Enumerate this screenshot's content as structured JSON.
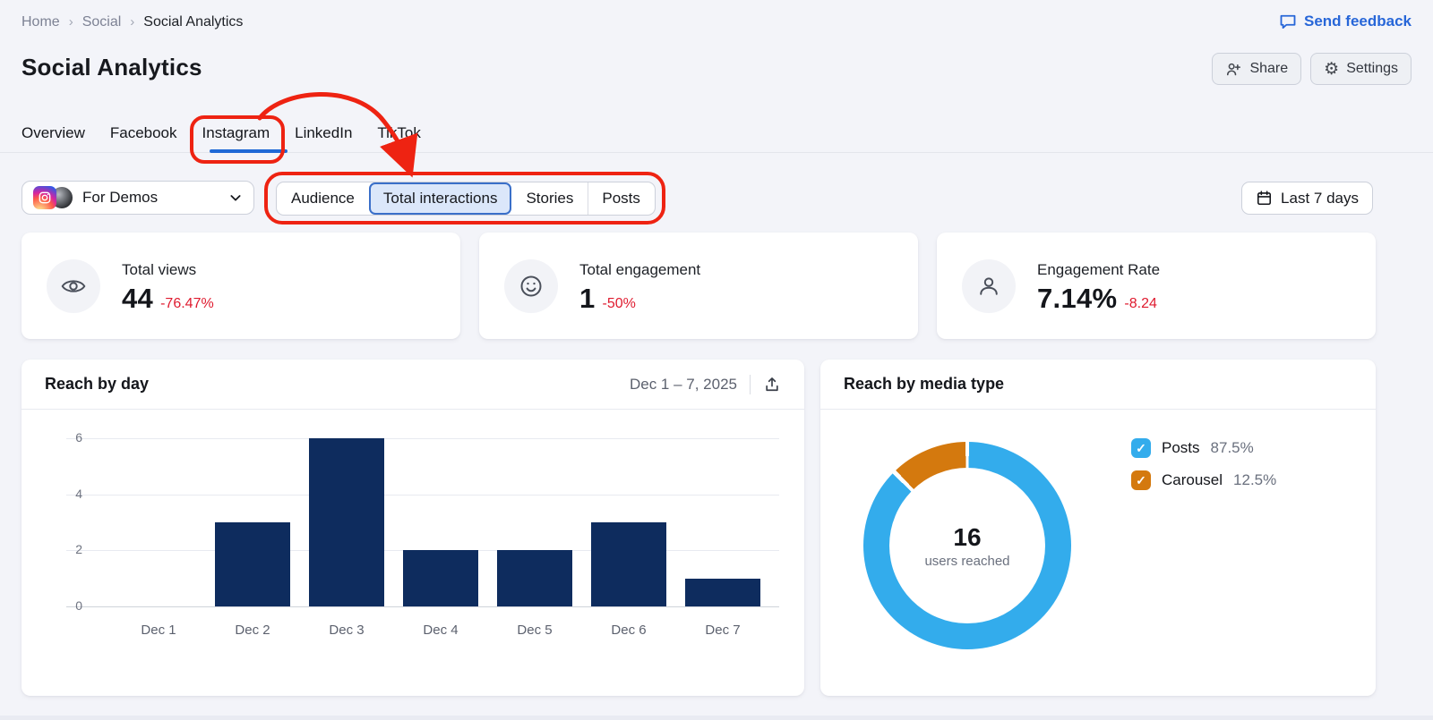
{
  "breadcrumb": {
    "items": [
      "Home",
      "Social",
      "Social Analytics"
    ]
  },
  "feedback": {
    "label": "Send feedback"
  },
  "header": {
    "title": "Social Analytics",
    "share_label": "Share",
    "settings_label": "Settings"
  },
  "tabs": {
    "items": [
      {
        "label": "Overview",
        "active": false
      },
      {
        "label": "Facebook",
        "active": false
      },
      {
        "label": "Instagram",
        "active": true
      },
      {
        "label": "LinkedIn",
        "active": false
      },
      {
        "label": "TikTok",
        "active": false
      }
    ]
  },
  "account_selector": {
    "label": "For Demos",
    "icons": [
      "instagram-icon",
      "avatar"
    ]
  },
  "subtabs": {
    "items": [
      {
        "label": "Audience",
        "selected": false
      },
      {
        "label": "Total interactions",
        "selected": true
      },
      {
        "label": "Stories",
        "selected": false
      },
      {
        "label": "Posts",
        "selected": false
      }
    ]
  },
  "date_range": {
    "label": "Last 7 days",
    "icon": "calendar-icon"
  },
  "metric_cards": [
    {
      "icon": "eye-icon",
      "label": "Total views",
      "value": "44",
      "delta": "-76.47%"
    },
    {
      "icon": "smiley-icon",
      "label": "Total engagement",
      "value": "1",
      "delta": "-50%"
    },
    {
      "icon": "person-icon",
      "label": "Engagement Rate",
      "value": "7.14%",
      "delta": "-8.24"
    }
  ],
  "chart_data": [
    {
      "type": "bar",
      "title": "Reach by day",
      "period": "Dec 1 – 7, 2025",
      "categories": [
        "Dec 1",
        "Dec 2",
        "Dec 3",
        "Dec 4",
        "Dec 5",
        "Dec 6",
        "Dec 7"
      ],
      "values": [
        0,
        3,
        6,
        2,
        2,
        3,
        1
      ],
      "ylim": [
        0,
        6
      ],
      "yticks": [
        0,
        2,
        4,
        6
      ],
      "grid": true,
      "legend": "none",
      "bar_color": "#0e2c5e"
    },
    {
      "type": "pie",
      "title": "Reach by media type",
      "center_value": "16",
      "center_label": "users reached",
      "slices": [
        {
          "label": "Posts",
          "value": 87.5,
          "pct_label": "87.5%",
          "color": "#33acec"
        },
        {
          "label": "Carousel",
          "value": 12.5,
          "pct_label": "12.5%",
          "color": "#d4790e"
        }
      ],
      "legend": "right"
    }
  ],
  "colors": {
    "page_bg": "#f3f4f9",
    "accent_blue": "#2766d8",
    "tab_underline": "#1f69d6",
    "negative_red": "#df1b2f",
    "annotation_red": "#ee2312",
    "bar_navy": "#0e2c5e",
    "donut_blue": "#33acec",
    "donut_orange": "#d4790e",
    "selected_segment_bg": "#dbe7fa",
    "selected_segment_border": "#3a6fc9"
  }
}
